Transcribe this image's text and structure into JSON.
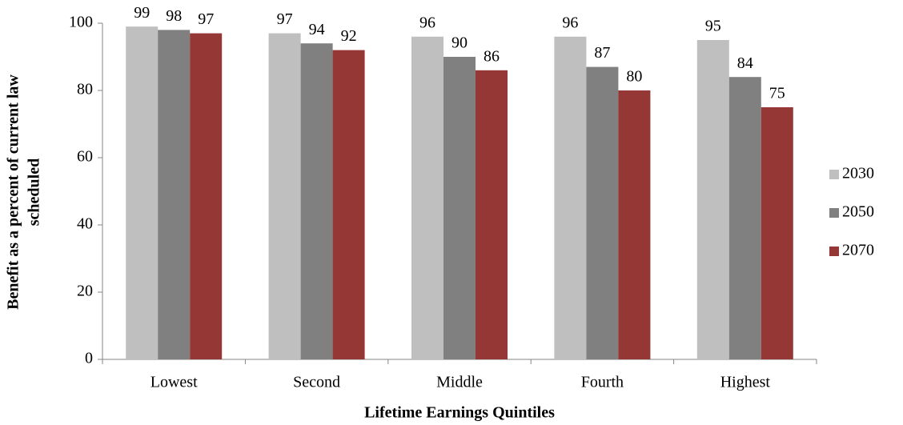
{
  "chart_data": {
    "type": "bar",
    "xlabel": "Lifetime Earnings Quintiles",
    "ylabel": [
      "Benefit as a percent of current law",
      "scheduled"
    ],
    "categories": [
      "Lowest",
      "Second",
      "Middle",
      "Fourth",
      "Highest"
    ],
    "series": [
      {
        "name": "2030",
        "color": "#bfbfbf",
        "values": [
          99,
          97,
          96,
          96,
          95
        ]
      },
      {
        "name": "2050",
        "color": "#808080",
        "values": [
          98,
          94,
          90,
          87,
          84
        ]
      },
      {
        "name": "2070",
        "color": "#953735",
        "values": [
          97,
          92,
          86,
          80,
          75
        ]
      }
    ],
    "ylim": [
      0,
      100
    ],
    "yticks": [
      0,
      20,
      40,
      60,
      80,
      100
    ],
    "grid": false,
    "legend": "right",
    "data_labels": true
  }
}
